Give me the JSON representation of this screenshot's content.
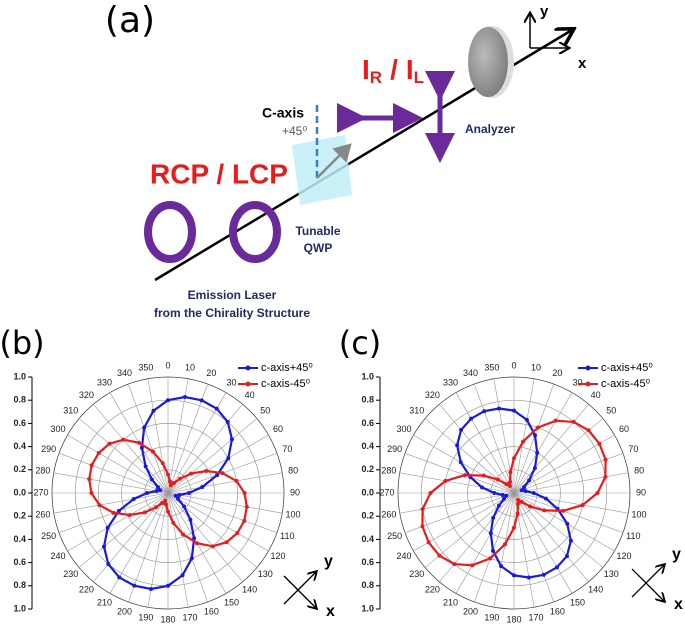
{
  "diagram": {
    "panel_label": "(a)",
    "axis_y": "y",
    "axis_x": "x",
    "intensity_label": {
      "i1": "I",
      "sub1": "R",
      "sep": "/",
      "i2": "I",
      "sub2": "L"
    },
    "c_axis": "C-axis",
    "angle": "+45⁰",
    "analyzer": "Analyzer",
    "polarization": "RCP / LCP",
    "qwp_line1": "Tunable",
    "qwp_line2": "QWP",
    "source_line1": "Emission Laser",
    "source_line2": "from the Chirality Structure"
  },
  "chart_data": [
    {
      "type": "polar",
      "panel_label": "(b)",
      "axis_y": "y",
      "axis_x": "x",
      "x": [
        0,
        10,
        20,
        30,
        40,
        50,
        60,
        70,
        80,
        90,
        100,
        110,
        120,
        130,
        140,
        150,
        160,
        170,
        180,
        190,
        200,
        210,
        220,
        230,
        240,
        250,
        260,
        270,
        280,
        290,
        300,
        310,
        320,
        330,
        340,
        350
      ],
      "xticks": [
        0,
        10,
        20,
        30,
        40,
        50,
        60,
        70,
        80,
        90,
        100,
        110,
        120,
        130,
        140,
        150,
        160,
        170,
        180,
        190,
        200,
        210,
        220,
        230,
        240,
        250,
        260,
        270,
        280,
        290,
        300,
        310,
        320,
        330,
        340,
        350
      ],
      "ylim": [
        0,
        1
      ],
      "yticks": [
        {
          "value": 0,
          "label": "0.0"
        },
        0.2,
        0.4,
        0.6,
        0.8,
        {
          "value": 1,
          "label": "1.0"
        }
      ],
      "grid": true,
      "legend": "upper right",
      "series": [
        {
          "name": "c-axis+45⁰",
          "color": "#1a1adf",
          "values": [
            0.8,
            0.84,
            0.85,
            0.84,
            0.8,
            0.72,
            0.6,
            0.45,
            0.3,
            0.18,
            0.1,
            0.07,
            0.1,
            0.18,
            0.3,
            0.45,
            0.6,
            0.72,
            0.8,
            0.84,
            0.85,
            0.84,
            0.8,
            0.72,
            0.6,
            0.45,
            0.3,
            0.18,
            0.1,
            0.07,
            0.1,
            0.18,
            0.3,
            0.45,
            0.6,
            0.72
          ]
        },
        {
          "name": "c-axis-45⁰",
          "color": "#e81c1c",
          "values": [
            0.16,
            0.1,
            0.07,
            0.1,
            0.16,
            0.26,
            0.38,
            0.5,
            0.6,
            0.66,
            0.69,
            0.7,
            0.69,
            0.66,
            0.6,
            0.5,
            0.38,
            0.26,
            0.16,
            0.1,
            0.07,
            0.1,
            0.16,
            0.26,
            0.38,
            0.5,
            0.6,
            0.66,
            0.69,
            0.7,
            0.69,
            0.66,
            0.6,
            0.5,
            0.38,
            0.26
          ]
        }
      ]
    },
    {
      "type": "polar",
      "panel_label": "(c)",
      "axis_y": "y",
      "axis_x": "x",
      "x": [
        0,
        10,
        20,
        30,
        40,
        50,
        60,
        70,
        80,
        90,
        100,
        110,
        120,
        130,
        140,
        150,
        160,
        170,
        180,
        190,
        200,
        210,
        220,
        230,
        240,
        250,
        260,
        270,
        280,
        290,
        300,
        310,
        320,
        330,
        340,
        350
      ],
      "xticks": [
        0,
        10,
        20,
        30,
        40,
        50,
        60,
        70,
        80,
        90,
        100,
        110,
        120,
        130,
        140,
        150,
        160,
        170,
        180,
        190,
        200,
        210,
        220,
        230,
        240,
        250,
        260,
        270,
        280,
        290,
        300,
        310,
        320,
        330,
        340,
        350
      ],
      "ylim": [
        0,
        1
      ],
      "yticks": [
        {
          "value": 0,
          "label": "0.0"
        },
        0.2,
        0.4,
        0.6,
        0.8,
        {
          "value": 1,
          "label": "1.0"
        }
      ],
      "grid": true,
      "legend": "upper right",
      "series": [
        {
          "name": "c-axis+45⁰",
          "color": "#1a1adf",
          "values": [
            0.71,
            0.64,
            0.53,
            0.4,
            0.28,
            0.17,
            0.1,
            0.07,
            0.1,
            0.17,
            0.28,
            0.4,
            0.53,
            0.64,
            0.71,
            0.74,
            0.75,
            0.74,
            0.71,
            0.64,
            0.53,
            0.4,
            0.28,
            0.17,
            0.1,
            0.07,
            0.1,
            0.17,
            0.28,
            0.4,
            0.53,
            0.64,
            0.71,
            0.74,
            0.75,
            0.74
          ]
        },
        {
          "name": "c-axis-45⁰",
          "color": "#e81c1c",
          "values": [
            0.3,
            0.45,
            0.6,
            0.72,
            0.8,
            0.84,
            0.85,
            0.84,
            0.8,
            0.72,
            0.6,
            0.45,
            0.3,
            0.18,
            0.1,
            0.07,
            0.1,
            0.18,
            0.3,
            0.45,
            0.6,
            0.72,
            0.8,
            0.84,
            0.85,
            0.84,
            0.8,
            0.72,
            0.6,
            0.45,
            0.3,
            0.18,
            0.1,
            0.07,
            0.1,
            0.18
          ]
        }
      ]
    }
  ]
}
